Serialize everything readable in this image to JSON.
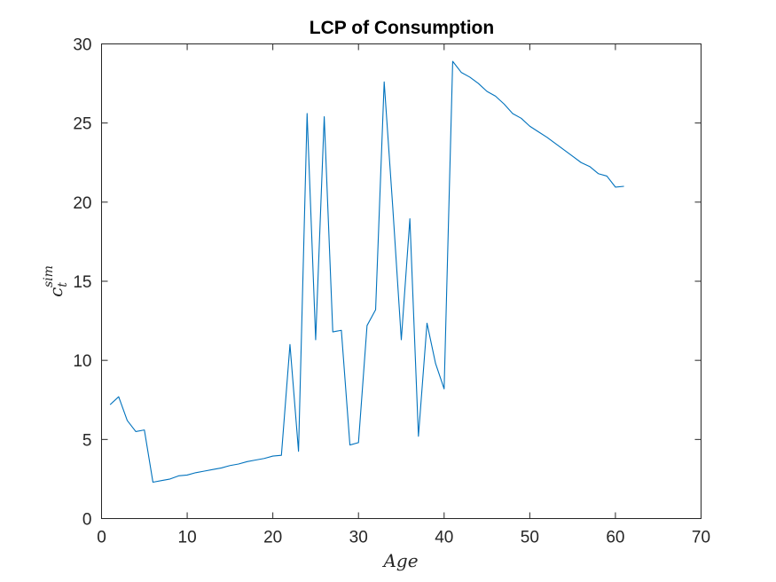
{
  "chart_data": {
    "type": "line",
    "title": "LCP of Consumption",
    "xlabel": "Age",
    "ylabel": {
      "base": "c",
      "subscript": "t",
      "superscript": "sim"
    },
    "xlim": [
      0,
      70
    ],
    "ylim": [
      0,
      30
    ],
    "xticks": [
      0,
      10,
      20,
      30,
      40,
      50,
      60,
      70
    ],
    "yticks": [
      0,
      5,
      10,
      15,
      20,
      25,
      30
    ],
    "grid": false,
    "legend": "none",
    "line_color": "#0072BD",
    "series": [
      {
        "x": [
          1,
          2,
          3,
          4,
          5,
          6,
          7,
          8,
          9,
          10,
          11,
          12,
          13,
          14,
          15,
          16,
          17,
          18,
          19,
          20,
          21,
          22,
          23,
          24,
          25,
          26,
          27,
          28,
          29,
          30,
          31,
          32,
          33,
          34,
          35,
          36,
          37,
          38,
          39,
          40,
          41,
          42,
          43,
          44,
          45,
          46,
          47,
          48,
          49,
          50,
          51,
          52,
          53,
          54,
          55,
          56,
          57,
          58,
          59,
          60,
          61
        ],
        "values": [
          7.2,
          7.7,
          6.2,
          5.5,
          5.6,
          2.3,
          2.4,
          2.5,
          2.7,
          2.75,
          2.9,
          3.0,
          3.1,
          3.2,
          3.35,
          3.45,
          3.6,
          3.7,
          3.8,
          3.95,
          4.0,
          11.0,
          4.25,
          25.6,
          11.3,
          25.4,
          11.8,
          11.9,
          4.65,
          4.8,
          12.2,
          13.2,
          27.6,
          19.7,
          11.3,
          18.95,
          5.2,
          12.35,
          9.8,
          8.2,
          28.9,
          28.2,
          27.9,
          27.5,
          27.0,
          26.7,
          26.2,
          25.6,
          25.3,
          24.8,
          24.45,
          24.1,
          23.7,
          23.3,
          22.9,
          22.5,
          22.25,
          21.8,
          21.65,
          20.95,
          21.0
        ]
      }
    ]
  }
}
